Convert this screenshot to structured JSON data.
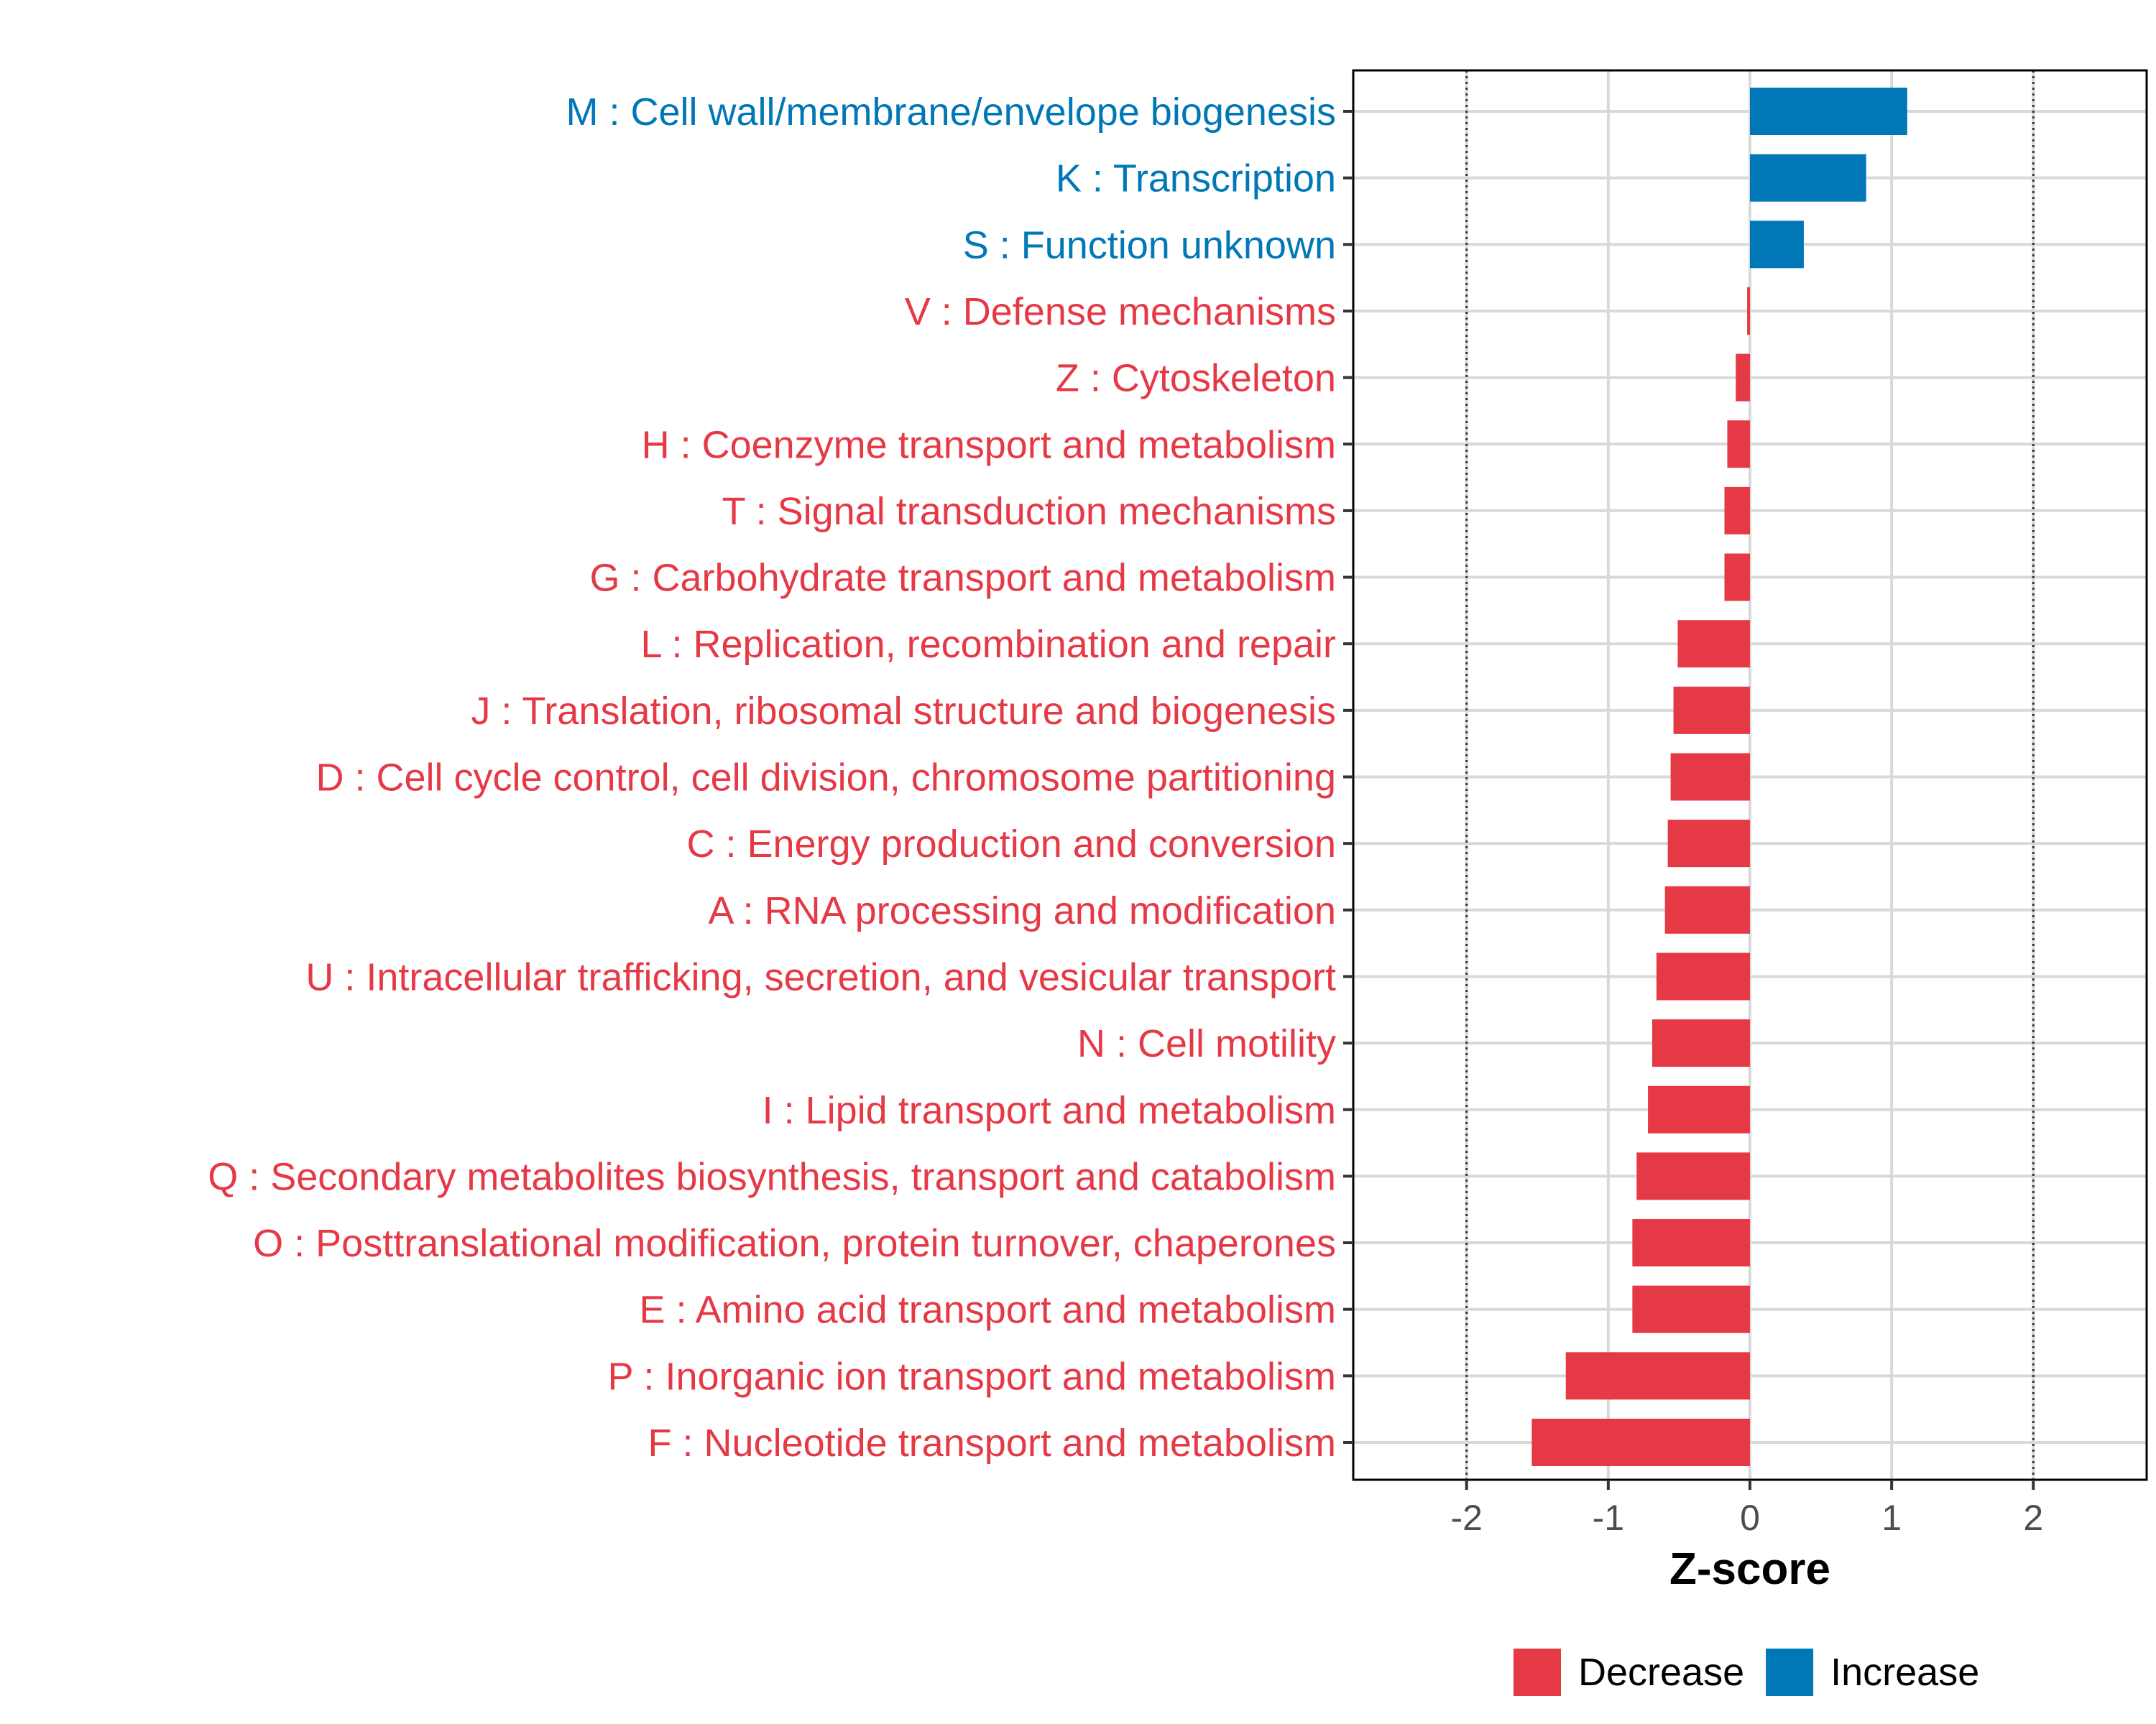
{
  "chart_data": {
    "type": "bar",
    "orientation": "horizontal",
    "xlabel": "Z-score",
    "xlim": [
      -2.8,
      2.8
    ],
    "xticks": [
      -2,
      -1,
      0,
      1,
      2
    ],
    "xtick_labels": [
      "-2",
      "-1",
      "0",
      "1",
      "2"
    ],
    "reference_lines": [
      -2,
      2
    ],
    "grid": true,
    "legend_position": "bottom",
    "categories": [
      "M : Cell wall/membrane/envelope biogenesis",
      "K : Transcription",
      "S : Function unknown",
      "V : Defense mechanisms",
      "Z : Cytoskeleton",
      "H : Coenzyme transport and metabolism",
      "T : Signal transduction mechanisms",
      "G : Carbohydrate transport and metabolism",
      "L : Replication, recombination and repair",
      "J : Translation, ribosomal structure and biogenesis",
      "D : Cell cycle control, cell division, chromosome partitioning",
      "C : Energy production and conversion",
      "A : RNA processing and modification",
      "U : Intracellular trafficking, secretion, and vesicular transport",
      "N : Cell motility",
      "I : Lipid transport and metabolism",
      "Q : Secondary metabolites biosynthesis, transport and catabolism",
      "O : Posttranslational modification, protein turnover, chaperones",
      "E : Amino acid transport and metabolism",
      "P : Inorganic ion transport and metabolism",
      "F : Nucleotide transport and metabolism"
    ],
    "values": [
      1.11,
      0.82,
      0.38,
      -0.02,
      -0.1,
      -0.16,
      -0.18,
      -0.18,
      -0.51,
      -0.54,
      -0.56,
      -0.58,
      -0.6,
      -0.66,
      -0.69,
      -0.72,
      -0.8,
      -0.83,
      -0.83,
      -1.3,
      -1.54
    ],
    "groups": [
      "Increase",
      "Increase",
      "Increase",
      "Decrease",
      "Decrease",
      "Decrease",
      "Decrease",
      "Decrease",
      "Decrease",
      "Decrease",
      "Decrease",
      "Decrease",
      "Decrease",
      "Decrease",
      "Decrease",
      "Decrease",
      "Decrease",
      "Decrease",
      "Decrease",
      "Decrease",
      "Decrease"
    ],
    "legend": [
      {
        "name": "Decrease",
        "color": "#E63946"
      },
      {
        "name": "Increase",
        "color": "#0077B6"
      }
    ],
    "colors": {
      "Decrease": "#E63946",
      "Increase": "#0077B6"
    }
  }
}
